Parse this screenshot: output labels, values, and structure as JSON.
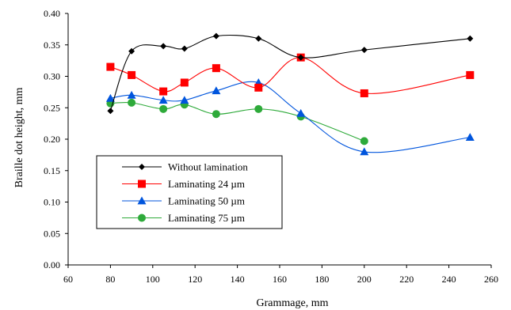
{
  "chart_data": {
    "type": "line",
    "xlabel": "Grammage, mm",
    "ylabel": "Braille dot height, mm",
    "xlim": [
      60,
      260
    ],
    "ylim": [
      0.0,
      0.4
    ],
    "xticks": [
      "60",
      "80",
      "100",
      "120",
      "140",
      "160",
      "180",
      "200",
      "220",
      "240",
      "260"
    ],
    "yticks": [
      "0.00",
      "0.05",
      "0.10",
      "0.15",
      "0.20",
      "0.25",
      "0.30",
      "0.35",
      "0.40"
    ],
    "grid": false,
    "legend_position": "lower-left",
    "series": [
      {
        "name": "Without lamination",
        "color": "#000000",
        "marker": "diamond",
        "x": [
          80,
          90,
          105,
          115,
          130,
          150,
          170,
          200,
          250
        ],
        "y": [
          0.245,
          0.34,
          0.348,
          0.344,
          0.364,
          0.36,
          0.33,
          0.342,
          0.36
        ]
      },
      {
        "name": "Laminating 24 µm",
        "color": "#ff0000",
        "marker": "square",
        "x": [
          80,
          90,
          105,
          115,
          130,
          150,
          170,
          200,
          250
        ],
        "y": [
          0.315,
          0.302,
          0.276,
          0.29,
          0.313,
          0.282,
          0.33,
          0.273,
          0.302
        ]
      },
      {
        "name": "Laminating 50 µm",
        "color": "#0055dd",
        "marker": "triangle",
        "x": [
          80,
          90,
          105,
          115,
          130,
          150,
          170,
          200,
          250
        ],
        "y": [
          0.265,
          0.27,
          0.262,
          0.262,
          0.277,
          0.29,
          0.241,
          0.18,
          0.203
        ]
      },
      {
        "name": "Laminating 75 µm",
        "color": "#2eaa3a",
        "marker": "circle",
        "x": [
          80,
          90,
          105,
          115,
          130,
          150,
          170,
          200
        ],
        "y": [
          0.257,
          0.258,
          0.248,
          0.255,
          0.24,
          0.248,
          0.236,
          0.197
        ]
      }
    ]
  }
}
